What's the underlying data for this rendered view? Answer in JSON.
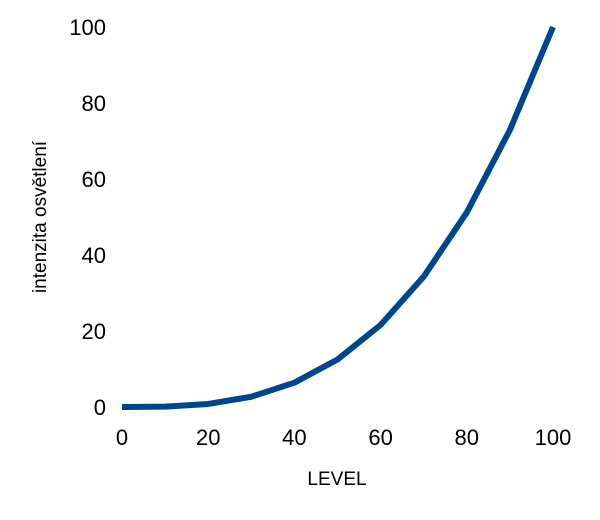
{
  "chart_data": {
    "type": "line",
    "title": "",
    "xlabel": "LEVEL",
    "ylabel": "intenzita osvětlení",
    "xlim": [
      0,
      100
    ],
    "ylim": [
      0,
      100
    ],
    "xticks": [
      0,
      20,
      40,
      60,
      80,
      100
    ],
    "yticks": [
      0,
      20,
      40,
      60,
      80,
      100
    ],
    "grid": false,
    "legend": "none",
    "color": "#00468b",
    "series": [
      {
        "x": [
          0,
          10,
          20,
          30,
          40,
          50,
          60,
          70,
          80,
          90,
          100
        ],
        "y": [
          0,
          0.1,
          0.8,
          2.7,
          6.4,
          12.5,
          21.6,
          34.3,
          51.2,
          72.9,
          100
        ]
      }
    ]
  }
}
